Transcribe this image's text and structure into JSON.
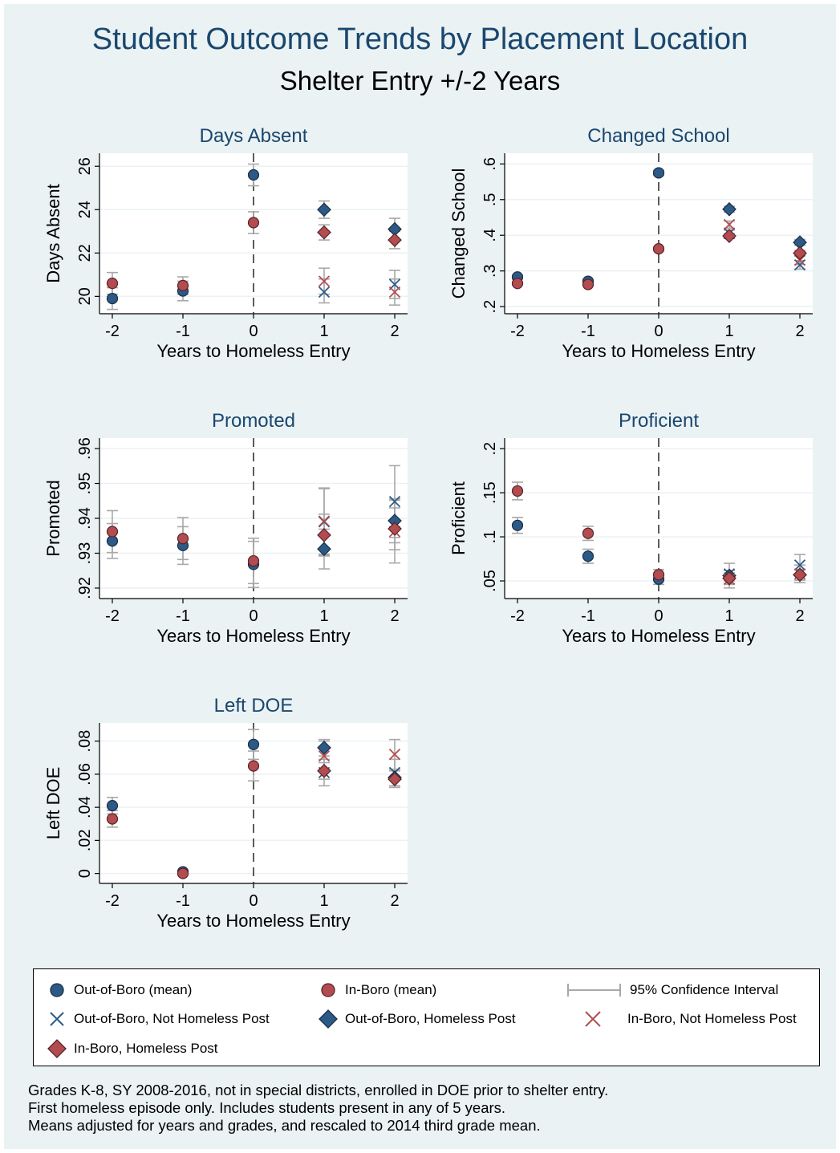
{
  "title": "Student Outcome Trends by Placement Location",
  "subtitle": "Shelter Entry +/-2 Years",
  "colors": {
    "outofboro": "#2c5a86",
    "inboro": "#b24c50",
    "ci": "#a8a8a8",
    "accent": "#1a476f",
    "panel_bg": "#eaf2f3"
  },
  "legend": {
    "items": [
      {
        "label": "Out-of-Boro (mean)",
        "icon": "blue-circle"
      },
      {
        "label": "In-Boro (mean)",
        "icon": "red-circle"
      },
      {
        "label": "95% Confidence Interval",
        "icon": "ci-bar"
      },
      {
        "label": "Out-of-Boro, Not Homeless Post",
        "icon": "blue-x"
      },
      {
        "label": "Out-of-Boro, Homeless Post",
        "icon": "blue-diamond"
      },
      {
        "label": "In-Boro, Not Homeless Post",
        "icon": "red-x"
      },
      {
        "label": "In-Boro, Homeless Post",
        "icon": "red-diamond"
      }
    ]
  },
  "notes": [
    "Grades K-8, SY 2008-2016, not in special districts, enrolled in DOE prior to shelter entry.",
    "First homeless episode only. Includes students present in any of 5 years.",
    "Means adjusted for years and grades, and rescaled to 2014 third grade mean."
  ],
  "chart_data": [
    {
      "type": "scatter",
      "title": "Days Absent",
      "xlabel": "Years to Homeless Entry",
      "ylabel": "Days Absent",
      "xticks": [
        -2,
        -1,
        0,
        1,
        2
      ],
      "xtick_labels": [
        "-2",
        "-1",
        "0",
        "1",
        "2"
      ],
      "yticks": [
        20,
        22,
        24,
        26
      ],
      "ytick_labels": [
        "20",
        "22",
        "24",
        "26"
      ],
      "ylim": [
        19.2,
        26.6
      ],
      "reference_line_x": 0,
      "series": [
        {
          "name": "Out-of-Boro (mean)",
          "marker": "circle",
          "color": "outofboro",
          "points": [
            [
              -2,
              19.9,
              19.4,
              20.4
            ],
            [
              -1,
              20.25,
              19.8,
              20.7
            ],
            [
              0,
              25.6,
              25.1,
              26.1
            ]
          ]
        },
        {
          "name": "In-Boro (mean)",
          "marker": "circle",
          "color": "inboro",
          "points": [
            [
              -2,
              20.6,
              20.1,
              21.1
            ],
            [
              -1,
              20.5,
              20.1,
              20.9
            ],
            [
              0,
              23.4,
              22.9,
              23.9
            ]
          ]
        },
        {
          "name": "Out-of-Boro, Not Homeless Post",
          "marker": "x",
          "color": "outofboro",
          "points": [
            [
              1,
              20.2,
              19.7,
              20.8
            ],
            [
              2,
              20.55,
              19.9,
              21.2
            ]
          ]
        },
        {
          "name": "Out-of-Boro, Homeless Post",
          "marker": "diamond",
          "color": "outofboro",
          "points": [
            [
              1,
              24.0,
              23.6,
              24.4
            ],
            [
              2,
              23.1,
              22.6,
              23.6
            ]
          ]
        },
        {
          "name": "In-Boro, Not Homeless Post",
          "marker": "x",
          "color": "inboro",
          "points": [
            [
              1,
              20.7,
              20.1,
              21.3
            ],
            [
              2,
              20.2,
              19.6,
              20.8
            ]
          ]
        },
        {
          "name": "In-Boro, Homeless Post",
          "marker": "diamond",
          "color": "inboro",
          "points": [
            [
              1,
              22.95,
              22.6,
              23.3
            ],
            [
              2,
              22.6,
              22.2,
              23.0
            ]
          ]
        }
      ]
    },
    {
      "type": "scatter",
      "title": "Changed School",
      "xlabel": "Years to Homeless Entry",
      "ylabel": "Changed School",
      "xticks": [
        -2,
        -1,
        0,
        1,
        2
      ],
      "xtick_labels": [
        "-2",
        "-1",
        "0",
        "1",
        "2"
      ],
      "yticks": [
        0.2,
        0.3,
        0.4,
        0.5,
        0.6
      ],
      "ytick_labels": [
        ".2",
        ".3",
        ".4",
        ".5",
        ".6"
      ],
      "ylim": [
        0.18,
        0.63
      ],
      "reference_line_x": 0,
      "series": [
        {
          "name": "Out-of-Boro (mean)",
          "marker": "circle",
          "color": "outofboro",
          "points": [
            [
              -2,
              0.283,
              0.278,
              0.288
            ],
            [
              -1,
              0.271,
              0.266,
              0.276
            ],
            [
              0,
              0.575,
              0.568,
              0.582
            ]
          ]
        },
        {
          "name": "In-Boro (mean)",
          "marker": "circle",
          "color": "inboro",
          "points": [
            [
              -2,
              0.265,
              0.261,
              0.269
            ],
            [
              -1,
              0.262,
              0.258,
              0.266
            ],
            [
              0,
              0.362,
              0.357,
              0.367
            ]
          ]
        },
        {
          "name": "Out-of-Boro, Not Homeless Post",
          "marker": "x",
          "color": "outofboro",
          "points": [
            [
              1,
              0.405,
              0.395,
              0.415
            ],
            [
              2,
              0.317,
              0.305,
              0.329
            ]
          ]
        },
        {
          "name": "Out-of-Boro, Homeless Post",
          "marker": "diamond",
          "color": "outofboro",
          "points": [
            [
              1,
              0.473,
              0.465,
              0.481
            ],
            [
              2,
              0.38,
              0.372,
              0.388
            ]
          ]
        },
        {
          "name": "In-Boro, Not Homeless Post",
          "marker": "x",
          "color": "inboro",
          "points": [
            [
              1,
              0.43,
              0.42,
              0.44
            ],
            [
              2,
              0.33,
              0.318,
              0.342
            ]
          ]
        },
        {
          "name": "In-Boro, Homeless Post",
          "marker": "diamond",
          "color": "inboro",
          "points": [
            [
              1,
              0.398,
              0.391,
              0.405
            ],
            [
              2,
              0.35,
              0.343,
              0.357
            ]
          ]
        }
      ]
    },
    {
      "type": "scatter",
      "title": "Promoted",
      "xlabel": "Years to Homeless Entry",
      "ylabel": "Promoted",
      "xticks": [
        -2,
        -1,
        0,
        1,
        2
      ],
      "xtick_labels": [
        "-2",
        "-1",
        "0",
        "1",
        "2"
      ],
      "yticks": [
        0.92,
        0.93,
        0.94,
        0.95,
        0.96
      ],
      "ytick_labels": [
        ".92",
        ".93",
        ".94",
        ".95",
        ".96"
      ],
      "ylim": [
        0.917,
        0.963
      ],
      "reference_line_x": 0,
      "series": [
        {
          "name": "Out-of-Boro (mean)",
          "marker": "circle",
          "color": "outofboro",
          "points": [
            [
              -2,
              0.9335,
              0.9285,
              0.9385
            ],
            [
              -1,
              0.9322,
              0.9268,
              0.9376
            ],
            [
              0,
              0.9268,
              0.9202,
              0.9334
            ]
          ]
        },
        {
          "name": "In-Boro (mean)",
          "marker": "circle",
          "color": "inboro",
          "points": [
            [
              -2,
              0.9362,
              0.9302,
              0.9422
            ],
            [
              -1,
              0.9342,
              0.9282,
              0.9402
            ],
            [
              0,
              0.9278,
              0.9213,
              0.9343
            ]
          ]
        },
        {
          "name": "Out-of-Boro, Not Homeless Post",
          "marker": "x",
          "color": "outofboro",
          "points": [
            [
              1,
              0.939,
              0.9295,
              0.9485
            ],
            [
              2,
              0.9448,
              0.9345,
              0.9551
            ]
          ]
        },
        {
          "name": "Out-of-Boro, Homeless Post",
          "marker": "diamond",
          "color": "outofboro",
          "points": [
            [
              1,
              0.9312,
              0.9255,
              0.9369
            ],
            [
              2,
              0.9393,
              0.933,
              0.9456
            ]
          ]
        },
        {
          "name": "In-Boro, Not Homeless Post",
          "marker": "x",
          "color": "inboro",
          "points": [
            [
              1,
              0.9392,
              0.9297,
              0.9487
            ],
            [
              2,
              0.9362,
              0.9272,
              0.9452
            ]
          ]
        },
        {
          "name": "In-Boro, Homeless Post",
          "marker": "diamond",
          "color": "inboro",
          "points": [
            [
              1,
              0.9352,
              0.9292,
              0.9412
            ],
            [
              2,
              0.937,
              0.931,
              0.943
            ]
          ]
        }
      ]
    },
    {
      "type": "scatter",
      "title": "Proficient",
      "xlabel": "Years to Homeless Entry",
      "ylabel": "Proficient",
      "xticks": [
        -2,
        -1,
        0,
        1,
        2
      ],
      "xtick_labels": [
        "-2",
        "-1",
        "0",
        "1",
        "2"
      ],
      "yticks": [
        0.05,
        0.1,
        0.15,
        0.2
      ],
      "ytick_labels": [
        ".05",
        ".1",
        ".15",
        ".2"
      ],
      "ylim": [
        0.03,
        0.212
      ],
      "reference_line_x": 0,
      "series": [
        {
          "name": "Out-of-Boro (mean)",
          "marker": "circle",
          "color": "outofboro",
          "points": [
            [
              -2,
              0.113,
              0.104,
              0.122
            ],
            [
              -1,
              0.078,
              0.07,
              0.086
            ],
            [
              0,
              0.052,
              0.046,
              0.058
            ]
          ]
        },
        {
          "name": "In-Boro (mean)",
          "marker": "circle",
          "color": "inboro",
          "points": [
            [
              -2,
              0.152,
              0.142,
              0.162
            ],
            [
              -1,
              0.104,
              0.096,
              0.112
            ],
            [
              0,
              0.057,
              0.051,
              0.063
            ]
          ]
        },
        {
          "name": "Out-of-Boro, Not Homeless Post",
          "marker": "x",
          "color": "outofboro",
          "points": [
            [
              1,
              0.058,
              0.046,
              0.07
            ],
            [
              2,
              0.068,
              0.056,
              0.08
            ]
          ]
        },
        {
          "name": "Out-of-Boro, Homeless Post",
          "marker": "diamond",
          "color": "outofboro",
          "points": [
            [
              1,
              0.056,
              0.05,
              0.062
            ],
            [
              2,
              0.057,
              0.051,
              0.063
            ]
          ]
        },
        {
          "name": "In-Boro, Not Homeless Post",
          "marker": "x",
          "color": "inboro",
          "points": [
            [
              1,
              0.052,
              0.042,
              0.062
            ],
            [
              2,
              0.058,
              0.048,
              0.068
            ]
          ]
        },
        {
          "name": "In-Boro, Homeless Post",
          "marker": "diamond",
          "color": "inboro",
          "points": [
            [
              1,
              0.053,
              0.047,
              0.059
            ],
            [
              2,
              0.057,
              0.051,
              0.063
            ]
          ]
        }
      ]
    },
    {
      "type": "scatter",
      "title": "Left DOE",
      "xlabel": "Years to Homeless Entry",
      "ylabel": "Left DOE",
      "xticks": [
        -2,
        -1,
        0,
        1,
        2
      ],
      "xtick_labels": [
        "-2",
        "-1",
        "0",
        "1",
        "2"
      ],
      "yticks": [
        0,
        0.02,
        0.04,
        0.06,
        0.08
      ],
      "ytick_labels": [
        "0",
        ".02",
        ".04",
        ".06",
        ".08"
      ],
      "ylim": [
        -0.006,
        0.091
      ],
      "reference_line_x": 0,
      "series": [
        {
          "name": "Out-of-Boro (mean)",
          "marker": "circle",
          "color": "outofboro",
          "points": [
            [
              -2,
              0.041,
              0.036,
              0.046
            ],
            [
              -1,
              0.001,
              0.0,
              0.002
            ],
            [
              0,
              0.078,
              0.069,
              0.087
            ]
          ]
        },
        {
          "name": "In-Boro (mean)",
          "marker": "circle",
          "color": "inboro",
          "points": [
            [
              -2,
              0.033,
              0.028,
              0.038
            ],
            [
              -1,
              0.0,
              0.0,
              0.001
            ],
            [
              0,
              0.065,
              0.056,
              0.074
            ]
          ]
        },
        {
          "name": "Out-of-Boro, Not Homeless Post",
          "marker": "x",
          "color": "outofboro",
          "points": [
            [
              1,
              0.061,
              0.053,
              0.069
            ],
            [
              2,
              0.061,
              0.053,
              0.069
            ]
          ]
        },
        {
          "name": "Out-of-Boro, Homeless Post",
          "marker": "diamond",
          "color": "outofboro",
          "points": [
            [
              1,
              0.076,
              0.071,
              0.081
            ],
            [
              2,
              0.058,
              0.053,
              0.063
            ]
          ]
        },
        {
          "name": "In-Boro, Not Homeless Post",
          "marker": "x",
          "color": "inboro",
          "points": [
            [
              1,
              0.071,
              0.062,
              0.08
            ],
            [
              2,
              0.072,
              0.063,
              0.081
            ]
          ]
        },
        {
          "name": "In-Boro, Homeless Post",
          "marker": "diamond",
          "color": "inboro",
          "points": [
            [
              1,
              0.062,
              0.057,
              0.067
            ],
            [
              2,
              0.057,
              0.052,
              0.062
            ]
          ]
        }
      ]
    }
  ]
}
